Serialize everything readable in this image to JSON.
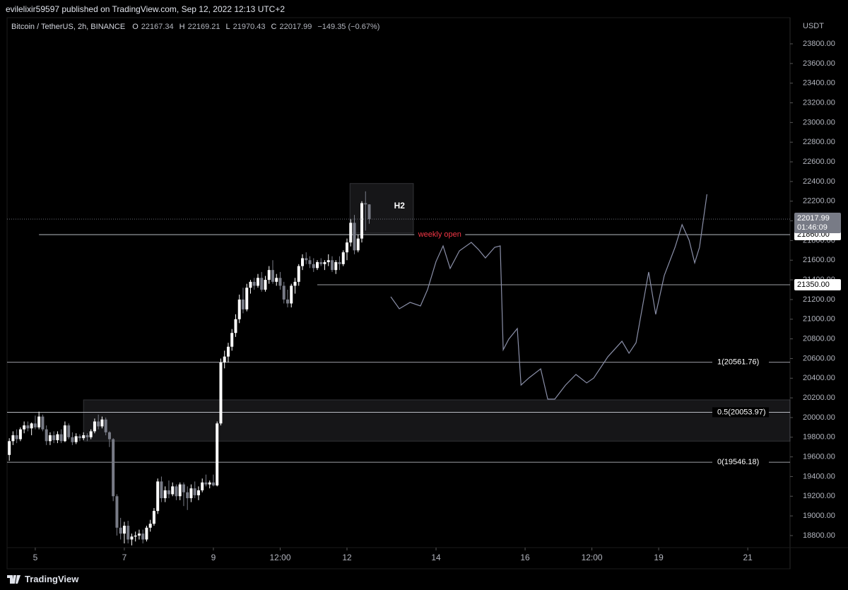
{
  "chart_data": {
    "type": "candlestick",
    "publisher": "evilelixir59597 published on TradingView.com, Sep 12, 2022 12:13 UTC+2",
    "title": "Bitcoin / TetherUS, 2h, BINANCE",
    "ohlc_letters": [
      "O",
      "H",
      "L",
      "C"
    ],
    "change": "−149.35 (−0.67%)",
    "currency": "USDT",
    "countdown": "01:46:09",
    "brand": "TradingView",
    "up_color": "#ffffff",
    "down_color": "#787b86",
    "projection_color": "#8a8fa8",
    "xlim": [
      -7.6,
      203.4
    ],
    "ylim": [
      18462,
      24066
    ],
    "xticks": [
      {
        "value": 0,
        "label": "5"
      },
      {
        "value": 24,
        "label": "7"
      },
      {
        "value": 48,
        "label": "9"
      },
      {
        "value": 66,
        "label": "12:00"
      },
      {
        "value": 84,
        "label": "12"
      },
      {
        "value": 108,
        "label": "14"
      },
      {
        "value": 132,
        "label": "16"
      },
      {
        "value": 150,
        "label": "12:00"
      },
      {
        "value": 168,
        "label": "19"
      },
      {
        "value": 192,
        "label": "21"
      }
    ],
    "yticks": [
      {
        "value": 18800,
        "label": "18800.00"
      },
      {
        "value": 19000,
        "label": "19000.00"
      },
      {
        "value": 19200,
        "label": "19200.00"
      },
      {
        "value": 19400,
        "label": "19400.00"
      },
      {
        "value": 19600,
        "label": "19600.00"
      },
      {
        "value": 19800,
        "label": "19800.00"
      },
      {
        "value": 20000,
        "label": "20000.00"
      },
      {
        "value": 20200,
        "label": "20200.00"
      },
      {
        "value": 20400,
        "label": "20400.00"
      },
      {
        "value": 20600,
        "label": "20600.00"
      },
      {
        "value": 20800,
        "label": "20800.00"
      },
      {
        "value": 21000,
        "label": "21000.00"
      },
      {
        "value": 21200,
        "label": "21200.00"
      },
      {
        "value": 21400,
        "label": "21400.00"
      },
      {
        "value": 21600,
        "label": "21600.00"
      },
      {
        "value": 21800,
        "label": "21800.00"
      },
      {
        "value": 22000,
        "label": "22000.00"
      },
      {
        "value": 22200,
        "label": "22200.00"
      },
      {
        "value": 22400,
        "label": "22400.00"
      },
      {
        "value": 22600,
        "label": "22600.00"
      },
      {
        "value": 22800,
        "label": "22800.00"
      },
      {
        "value": 23000,
        "label": "23000.00"
      },
      {
        "value": 23200,
        "label": "23200.00"
      },
      {
        "value": 23400,
        "label": "23400.00"
      },
      {
        "value": 23600,
        "label": "23600.00"
      },
      {
        "value": 23800,
        "label": "23800.00"
      }
    ],
    "x": [
      -7,
      -6,
      -5,
      -4,
      -3,
      -2,
      -1,
      0,
      1,
      2,
      3,
      4,
      5,
      6,
      7,
      8,
      9,
      10,
      11,
      12,
      13,
      14,
      15,
      16,
      17,
      18,
      19,
      20,
      21,
      22,
      23,
      24,
      25,
      26,
      27,
      28,
      29,
      30,
      31,
      32,
      33,
      34,
      35,
      36,
      37,
      38,
      39,
      40,
      41,
      42,
      43,
      44,
      45,
      46,
      47,
      48,
      49,
      50,
      51,
      52,
      53,
      54,
      55,
      56,
      57,
      58,
      59,
      60,
      61,
      62,
      63,
      64,
      65,
      66,
      67,
      68,
      69,
      70,
      71,
      72,
      73,
      74,
      75,
      76,
      77,
      78,
      79,
      80,
      81,
      82,
      83,
      84,
      85,
      86,
      87,
      88,
      89,
      90
    ],
    "open": [
      19620,
      19760,
      19820,
      19780,
      19880,
      19920,
      19890,
      19940,
      19900,
      20010,
      19880,
      19760,
      19820,
      19770,
      19830,
      19760,
      19920,
      19800,
      19750,
      19810,
      19790,
      19820,
      19800,
      19860,
      19960,
      19910,
      19980,
      19850,
      19780,
      19200,
      18880,
      18820,
      18900,
      18760,
      18790,
      18800,
      18820,
      18760,
      18880,
      18920,
      19050,
      19350,
      19180,
      19260,
      19220,
      19300,
      19200,
      19320,
      19240,
      19180,
      19280,
      19210,
      19260,
      19340,
      19320,
      19340,
      19310,
      19940,
      20560,
      20620,
      20720,
      20860,
      21000,
      21200,
      21100,
      21320,
      21380,
      21340,
      21420,
      21300,
      21400,
      21500,
      21380,
      21420,
      21340,
      21200,
      21160,
      21340,
      21380,
      21540,
      21620,
      21600,
      21560,
      21520,
      21580,
      21560,
      21580,
      21600,
      21500,
      21580,
      21560,
      21680,
      21780,
      21980,
      21700,
      21820,
      22180,
      22167.34
    ],
    "high": [
      19790,
      19860,
      19880,
      19900,
      19960,
      19960,
      19950,
      20020,
      20060,
      20030,
      19920,
      19850,
      19860,
      19860,
      19880,
      19960,
      19940,
      19850,
      19840,
      19830,
      19850,
      19840,
      19880,
      19990,
      20030,
      20010,
      20000,
      19860,
      19790,
      19220,
      18980,
      18940,
      18950,
      18820,
      18840,
      18860,
      18860,
      18900,
      18960,
      19080,
      19380,
      19400,
      19300,
      19360,
      19340,
      19320,
      19340,
      19340,
      19300,
      19320,
      19350,
      19300,
      19380,
      19420,
      19360,
      19420,
      19960,
      20600,
      20680,
      20760,
      20900,
      21050,
      21250,
      21320,
      21360,
      21400,
      21420,
      21460,
      21480,
      21440,
      21540,
      21600,
      21460,
      21480,
      21380,
      21300,
      21360,
      21420,
      21560,
      21660,
      21680,
      21640,
      21620,
      21600,
      21620,
      21600,
      21660,
      21640,
      21600,
      21640,
      21700,
      21820,
      22020,
      22060,
      21860,
      22200,
      22300,
      22169.21
    ],
    "low": [
      19560,
      19720,
      19740,
      19760,
      19840,
      19860,
      19820,
      19880,
      19880,
      19860,
      19720,
      19720,
      19740,
      19740,
      19740,
      19750,
      19780,
      19720,
      19730,
      19760,
      19770,
      19760,
      19780,
      19840,
      19880,
      19890,
      19820,
      19700,
      19150,
      18800,
      18760,
      18720,
      18720,
      18700,
      18740,
      18760,
      18720,
      18740,
      18840,
      18900,
      19020,
      19140,
      19140,
      19180,
      19200,
      19160,
      19160,
      19100,
      19060,
      19140,
      19180,
      19160,
      19240,
      19300,
      19280,
      19300,
      19300,
      19920,
      20500,
      20560,
      20680,
      20820,
      20960,
      21060,
      21080,
      21260,
      21300,
      21320,
      21280,
      21280,
      21360,
      21360,
      21340,
      21300,
      21160,
      21120,
      21120,
      21260,
      21340,
      21500,
      21560,
      21520,
      21480,
      21500,
      21540,
      21500,
      21540,
      21480,
      21460,
      21500,
      21540,
      21600,
      21740,
      21660,
      21680,
      21780,
      21900,
      21970.43
    ],
    "close": [
      19760,
      19820,
      19780,
      19880,
      19920,
      19890,
      19940,
      19900,
      20010,
      19880,
      19760,
      19820,
      19770,
      19830,
      19760,
      19920,
      19800,
      19750,
      19810,
      19790,
      19820,
      19800,
      19860,
      19960,
      19910,
      19980,
      19850,
      19780,
      19200,
      18880,
      18820,
      18900,
      18760,
      18790,
      18800,
      18820,
      18760,
      18880,
      18920,
      19050,
      19350,
      19180,
      19260,
      19220,
      19300,
      19200,
      19320,
      19240,
      19180,
      19280,
      19210,
      19260,
      19340,
      19320,
      19340,
      19310,
      19940,
      20560,
      20620,
      20720,
      20860,
      21000,
      21200,
      21100,
      21320,
      21380,
      21340,
      21420,
      21300,
      21400,
      21500,
      21380,
      21420,
      21340,
      21200,
      21160,
      21340,
      21380,
      21540,
      21620,
      21600,
      21560,
      21520,
      21580,
      21560,
      21580,
      21600,
      21500,
      21580,
      21560,
      21680,
      21780,
      21980,
      21700,
      21820,
      22180,
      22167,
      22017.99
    ],
    "hlines": [
      {
        "value": 21860,
        "label": "21860.00",
        "start": 1,
        "name": "weekly open",
        "name_at": 109
      },
      {
        "value": 21350,
        "label": "21350.00",
        "start": 76
      }
    ],
    "levels": [
      {
        "value": 20561.76,
        "label": "1(20561.76)"
      },
      {
        "value": 20053.97,
        "label": "0.5(20053.97)"
      },
      {
        "value": 19546.18,
        "label": "0(19546.18)"
      }
    ],
    "zones": [
      {
        "low": 19760,
        "high": 20180,
        "start": 13,
        "end": 203.4
      },
      {
        "low": 21875,
        "high": 22380,
        "start": 84.8,
        "end": 101.9,
        "label": "H2"
      }
    ],
    "projection": {
      "x": [
        95.8,
        98.1,
        101,
        103.8,
        105.7,
        108,
        109.9,
        111.8,
        114.3,
        117.5,
        119.4,
        121.3,
        123.8,
        125.3,
        126.1,
        127.6,
        129.9,
        130.9,
        133,
        136.2,
        138.1,
        140,
        142.9,
        145.7,
        148.6,
        150.5,
        154.3,
        158.1,
        160,
        161.9,
        165.3,
        167.2,
        169.5,
        172.4,
        174.3,
        176.2,
        177.7,
        179,
        181
      ],
      "y": [
        21228,
        21106,
        21171,
        21135,
        21300,
        21587,
        21745,
        21516,
        21695,
        21781,
        21710,
        21623,
        21731,
        21745,
        20689,
        20797,
        20905,
        20330,
        20402,
        20495,
        20187,
        20187,
        20330,
        20438,
        20352,
        20402,
        20618,
        20776,
        20654,
        20761,
        21480,
        21049,
        21444,
        21731,
        21961,
        21803,
        21573,
        21731,
        22270
      ]
    }
  }
}
